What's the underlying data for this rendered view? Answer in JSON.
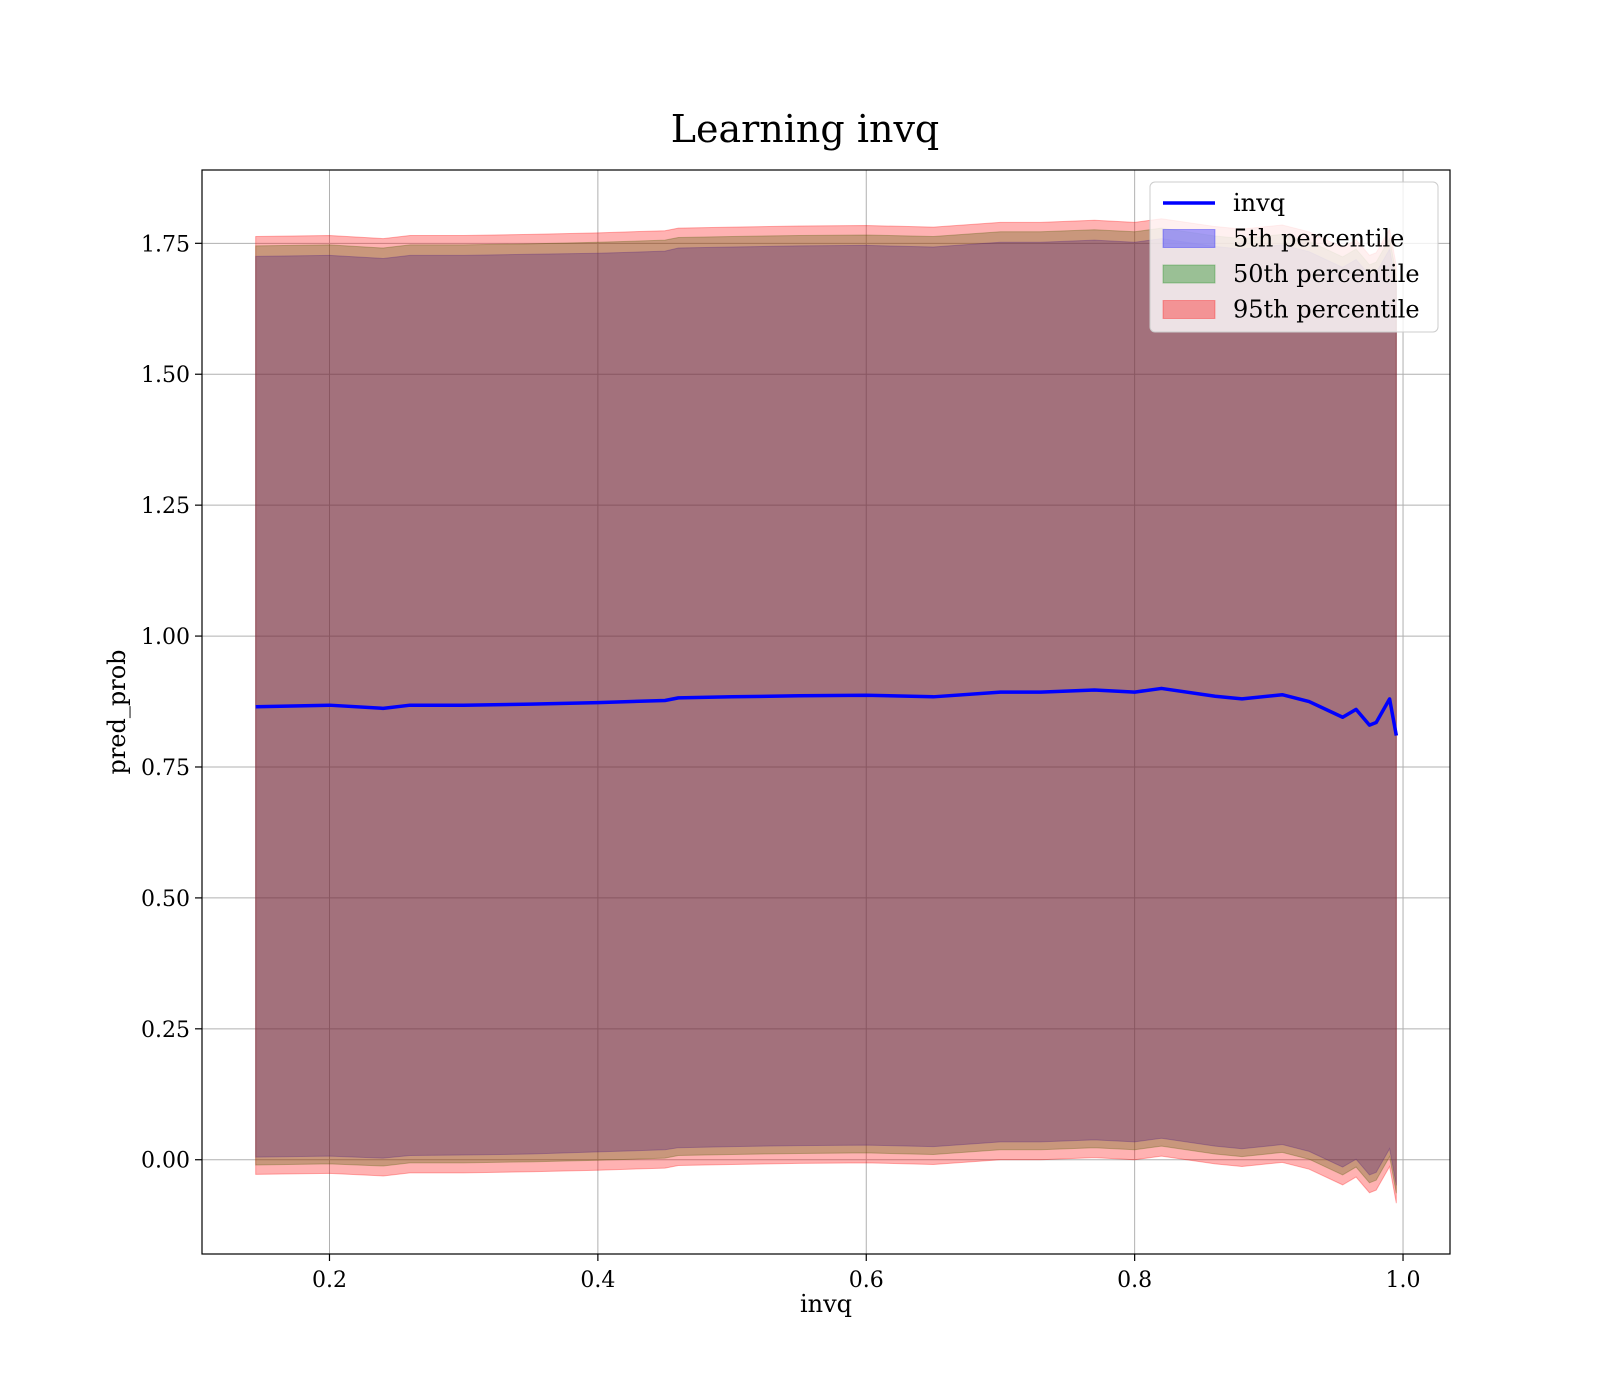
{
  "chart_data": {
    "type": "area",
    "title": "Learning invq",
    "xlabel": "invq",
    "ylabel": "pred_prob",
    "xlim": [
      0.105,
      1.035
    ],
    "ylim": [
      -0.18,
      1.89
    ],
    "xticks": [
      0.2,
      0.4,
      0.6,
      0.8,
      1.0
    ],
    "xtick_labels": [
      "0.2",
      "0.4",
      "0.6",
      "0.8",
      "1.0"
    ],
    "yticks": [
      0.0,
      0.25,
      0.5,
      0.75,
      1.0,
      1.25,
      1.5,
      1.75
    ],
    "ytick_labels": [
      "0.00",
      "0.25",
      "0.50",
      "0.75",
      "1.00",
      "1.25",
      "1.50",
      "1.75"
    ],
    "grid": true,
    "legend_position": "top-right",
    "x": [
      0.145,
      0.2,
      0.24,
      0.26,
      0.3,
      0.35,
      0.4,
      0.45,
      0.46,
      0.5,
      0.55,
      0.6,
      0.65,
      0.7,
      0.73,
      0.77,
      0.8,
      0.82,
      0.86,
      0.88,
      0.91,
      0.93,
      0.955,
      0.965,
      0.975,
      0.98,
      0.99,
      0.995
    ],
    "series": [
      {
        "name": "invq",
        "kind": "line",
        "color": "#0000ff",
        "values": [
          0.865,
          0.868,
          0.862,
          0.868,
          0.868,
          0.87,
          0.873,
          0.877,
          0.882,
          0.884,
          0.886,
          0.887,
          0.884,
          0.893,
          0.893,
          0.897,
          0.893,
          0.9,
          0.885,
          0.88,
          0.888,
          0.875,
          0.845,
          0.86,
          0.83,
          0.835,
          0.88,
          0.81
        ]
      },
      {
        "name": "5th percentile",
        "kind": "band",
        "color": "#0000ff",
        "opacity": 0.3,
        "lower": [
          0.005,
          0.007,
          0.003,
          0.008,
          0.009,
          0.011,
          0.015,
          0.019,
          0.023,
          0.025,
          0.027,
          0.028,
          0.025,
          0.034,
          0.034,
          0.038,
          0.034,
          0.041,
          0.026,
          0.021,
          0.029,
          0.016,
          -0.014,
          0.001,
          -0.029,
          -0.024,
          0.021,
          -0.049
        ],
        "upper": [
          1.725,
          1.727,
          1.721,
          1.727,
          1.727,
          1.729,
          1.731,
          1.735,
          1.741,
          1.743,
          1.745,
          1.746,
          1.743,
          1.752,
          1.752,
          1.756,
          1.752,
          1.759,
          1.744,
          1.739,
          1.747,
          1.734,
          1.704,
          1.719,
          1.689,
          1.694,
          1.739,
          1.669
        ]
      },
      {
        "name": "50th percentile",
        "kind": "band",
        "color": "#008000",
        "opacity": 0.3,
        "lower": [
          -0.01,
          -0.008,
          -0.012,
          -0.006,
          -0.006,
          -0.004,
          -0.001,
          0.003,
          0.008,
          0.01,
          0.012,
          0.013,
          0.01,
          0.019,
          0.019,
          0.023,
          0.019,
          0.026,
          0.011,
          0.006,
          0.014,
          0.001,
          -0.029,
          -0.014,
          -0.044,
          -0.039,
          0.006,
          -0.064
        ],
        "upper": [
          1.745,
          1.747,
          1.741,
          1.747,
          1.747,
          1.749,
          1.752,
          1.756,
          1.761,
          1.763,
          1.765,
          1.766,
          1.763,
          1.772,
          1.772,
          1.776,
          1.772,
          1.779,
          1.764,
          1.759,
          1.767,
          1.754,
          1.724,
          1.739,
          1.709,
          1.714,
          1.759,
          1.689
        ]
      },
      {
        "name": "95th percentile",
        "kind": "band",
        "color": "#ff0000",
        "opacity": 0.3,
        "lower": [
          -0.028,
          -0.026,
          -0.031,
          -0.025,
          -0.025,
          -0.023,
          -0.02,
          -0.016,
          -0.011,
          -0.009,
          -0.007,
          -0.006,
          -0.009,
          0.0,
          0.0,
          0.004,
          0.0,
          0.007,
          -0.008,
          -0.013,
          -0.005,
          -0.018,
          -0.048,
          -0.033,
          -0.063,
          -0.058,
          -0.013,
          -0.083
        ],
        "upper": [
          1.763,
          1.765,
          1.759,
          1.765,
          1.765,
          1.767,
          1.77,
          1.774,
          1.779,
          1.781,
          1.783,
          1.784,
          1.781,
          1.79,
          1.79,
          1.794,
          1.79,
          1.797,
          1.782,
          1.777,
          1.785,
          1.772,
          1.742,
          1.757,
          1.727,
          1.732,
          1.777,
          1.707
        ]
      }
    ]
  }
}
